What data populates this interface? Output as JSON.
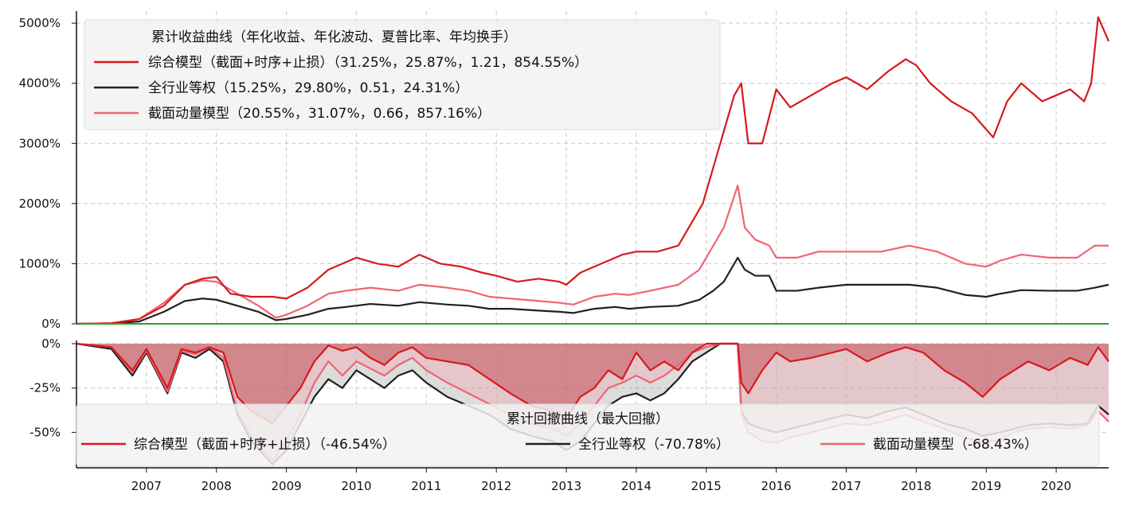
{
  "colors": {
    "composite": "#d7191c",
    "industry": "#231f20",
    "momentum": "#f06474",
    "zero_line": "#2ca02c"
  },
  "chart_data": [
    {
      "type": "line",
      "title": "累计收益曲线（年化收益、年化波动、夏普比率、年均换手）",
      "xlabel": "",
      "ylabel": "",
      "xlim": [
        2006.0,
        2020.75
      ],
      "ylim": [
        0,
        5200
      ],
      "y_unit": "%",
      "y_ticks": [
        "0%",
        "1000%",
        "2000%",
        "3000%",
        "4000%",
        "5000%"
      ],
      "x_ticks": [
        "2007",
        "2008",
        "2009",
        "2010",
        "2011",
        "2012",
        "2013",
        "2014",
        "2015",
        "2016",
        "2017",
        "2018",
        "2019",
        "2020"
      ],
      "grid": true,
      "legend_position": "top-left",
      "series": [
        {
          "name": "综合模型（截面+时序+止损）",
          "stats": "（31.25%，25.87%，1.21，854.55%）",
          "x": [
            2006.0,
            2006.5,
            2006.9,
            2007.25,
            2007.55,
            2007.8,
            2008.0,
            2008.2,
            2008.5,
            2008.8,
            2009.0,
            2009.3,
            2009.6,
            2009.8,
            2010.0,
            2010.3,
            2010.6,
            2010.9,
            2011.2,
            2011.5,
            2011.8,
            2012.0,
            2012.3,
            2012.6,
            2012.9,
            2013.0,
            2013.2,
            2013.5,
            2013.8,
            2014.0,
            2014.3,
            2014.6,
            2014.8,
            2014.95,
            2015.1,
            2015.25,
            2015.4,
            2015.5,
            2015.6,
            2015.8,
            2016.0,
            2016.2,
            2016.5,
            2016.8,
            2017.0,
            2017.3,
            2017.6,
            2017.85,
            2018.0,
            2018.2,
            2018.5,
            2018.8,
            2018.95,
            2019.1,
            2019.3,
            2019.5,
            2019.8,
            2020.0,
            2020.2,
            2020.4,
            2020.5,
            2020.6,
            2020.75
          ],
          "y": [
            0,
            10,
            80,
            300,
            650,
            750,
            780,
            500,
            450,
            450,
            420,
            600,
            900,
            1000,
            1100,
            1000,
            950,
            1150,
            1000,
            950,
            850,
            800,
            700,
            750,
            700,
            650,
            850,
            1000,
            1150,
            1200,
            1200,
            1300,
            1700,
            2000,
            2600,
            3200,
            3800,
            4000,
            3000,
            3000,
            3900,
            3600,
            3800,
            4000,
            4100,
            3900,
            4200,
            4400,
            4300,
            4000,
            3700,
            3500,
            3300,
            3100,
            3700,
            4000,
            3700,
            3800,
            3900,
            3700,
            4000,
            5100,
            4700
          ]
        },
        {
          "name": "全行业等权",
          "stats": "（15.25%，29.80%，0.51，24.31%）",
          "x": [
            2006.0,
            2006.5,
            2006.9,
            2007.25,
            2007.55,
            2007.8,
            2008.0,
            2008.3,
            2008.6,
            2008.85,
            2009.0,
            2009.3,
            2009.6,
            2009.85,
            2010.2,
            2010.6,
            2010.9,
            2011.3,
            2011.6,
            2011.9,
            2012.2,
            2012.6,
            2012.9,
            2013.1,
            2013.4,
            2013.7,
            2013.9,
            2014.2,
            2014.6,
            2014.9,
            2015.1,
            2015.25,
            2015.45,
            2015.55,
            2015.7,
            2015.9,
            2016.0,
            2016.3,
            2016.6,
            2017.0,
            2017.5,
            2017.9,
            2018.3,
            2018.7,
            2019.0,
            2019.2,
            2019.5,
            2019.9,
            2020.3,
            2020.55,
            2020.75
          ],
          "y": [
            0,
            5,
            40,
            200,
            380,
            420,
            400,
            300,
            200,
            60,
            80,
            150,
            250,
            280,
            330,
            300,
            360,
            320,
            300,
            250,
            250,
            220,
            200,
            180,
            250,
            280,
            250,
            280,
            300,
            400,
            550,
            700,
            1100,
            900,
            800,
            800,
            550,
            550,
            600,
            650,
            650,
            650,
            600,
            480,
            450,
            500,
            560,
            550,
            550,
            600,
            650
          ]
        },
        {
          "name": "截面动量模型",
          "stats": "（20.55%，31.07%，0.66，857.16%）",
          "x": [
            2006.0,
            2006.5,
            2006.9,
            2007.25,
            2007.55,
            2007.8,
            2008.0,
            2008.3,
            2008.6,
            2008.85,
            2009.0,
            2009.3,
            2009.6,
            2009.85,
            2010.2,
            2010.6,
            2010.9,
            2011.3,
            2011.6,
            2011.9,
            2012.2,
            2012.6,
            2012.9,
            2013.1,
            2013.4,
            2013.7,
            2013.9,
            2014.2,
            2014.6,
            2014.9,
            2015.1,
            2015.25,
            2015.45,
            2015.55,
            2015.7,
            2015.9,
            2016.0,
            2016.3,
            2016.6,
            2017.0,
            2017.5,
            2017.9,
            2018.3,
            2018.7,
            2019.0,
            2019.2,
            2019.5,
            2019.9,
            2020.3,
            2020.55,
            2020.75
          ],
          "y": [
            0,
            10,
            80,
            350,
            650,
            720,
            700,
            500,
            300,
            100,
            150,
            300,
            500,
            550,
            600,
            550,
            650,
            600,
            550,
            450,
            420,
            380,
            350,
            320,
            450,
            500,
            480,
            550,
            650,
            900,
            1300,
            1600,
            2300,
            1600,
            1400,
            1300,
            1100,
            1100,
            1200,
            1200,
            1200,
            1300,
            1200,
            1000,
            950,
            1050,
            1150,
            1100,
            1100,
            1300,
            1300
          ]
        }
      ]
    },
    {
      "type": "area",
      "title": "累计回撤曲线（最大回撤）",
      "xlabel": "",
      "ylabel": "",
      "xlim": [
        2006.0,
        2020.75
      ],
      "ylim": [
        -70,
        0
      ],
      "y_unit": "%",
      "y_ticks": [
        "0%",
        "-25%",
        "-50%"
      ],
      "x_ticks": [
        "2007",
        "2008",
        "2009",
        "2010",
        "2011",
        "2012",
        "2013",
        "2014",
        "2015",
        "2016",
        "2017",
        "2018",
        "2019",
        "2020"
      ],
      "grid": true,
      "legend_position": "bottom",
      "series": [
        {
          "name": "综合模型（截面+时序+止损）",
          "stats": "（-46.54%）",
          "x": [
            2006.0,
            2006.5,
            2006.8,
            2007.0,
            2007.3,
            2007.5,
            2007.7,
            2007.9,
            2008.1,
            2008.3,
            2008.5,
            2008.8,
            2009.0,
            2009.2,
            2009.4,
            2009.6,
            2009.8,
            2010.0,
            2010.2,
            2010.4,
            2010.6,
            2010.8,
            2011.0,
            2011.3,
            2011.6,
            2011.9,
            2012.2,
            2012.5,
            2012.8,
            2013.0,
            2013.2,
            2013.4,
            2013.6,
            2013.8,
            2014.0,
            2014.2,
            2014.4,
            2014.6,
            2014.8,
            2015.0,
            2015.2,
            2015.45,
            2015.5,
            2015.6,
            2015.8,
            2016.0,
            2016.2,
            2016.5,
            2016.8,
            2017.0,
            2017.3,
            2017.6,
            2017.85,
            2018.1,
            2018.4,
            2018.7,
            2018.95,
            2019.2,
            2019.4,
            2019.6,
            2019.9,
            2020.2,
            2020.45,
            2020.6,
            2020.75
          ],
          "y": [
            0,
            -2,
            -15,
            -3,
            -25,
            -3,
            -5,
            -2,
            -5,
            -30,
            -38,
            -45,
            -35,
            -25,
            -10,
            -1,
            -4,
            -2,
            -8,
            -12,
            -5,
            -2,
            -8,
            -10,
            -12,
            -20,
            -28,
            -35,
            -38,
            -42,
            -30,
            -25,
            -15,
            -20,
            -5,
            -15,
            -10,
            -15,
            -5,
            0,
            0,
            0,
            -22,
            -28,
            -15,
            -5,
            -10,
            -8,
            -5,
            -3,
            -10,
            -5,
            -2,
            -5,
            -15,
            -22,
            -30,
            -20,
            -15,
            -10,
            -15,
            -8,
            -12,
            -2,
            -10
          ]
        },
        {
          "name": "全行业等权",
          "stats": "（-70.78%）",
          "x": [
            2006.0,
            2006.5,
            2006.8,
            2007.0,
            2007.3,
            2007.5,
            2007.7,
            2007.9,
            2008.1,
            2008.3,
            2008.5,
            2008.8,
            2009.0,
            2009.2,
            2009.4,
            2009.6,
            2009.8,
            2010.0,
            2010.2,
            2010.4,
            2010.6,
            2010.8,
            2011.0,
            2011.3,
            2011.6,
            2011.9,
            2012.2,
            2012.5,
            2012.8,
            2013.0,
            2013.2,
            2013.4,
            2013.6,
            2013.8,
            2014.0,
            2014.2,
            2014.4,
            2014.6,
            2014.8,
            2015.0,
            2015.2,
            2015.45,
            2015.5,
            2015.6,
            2015.8,
            2016.0,
            2016.2,
            2016.5,
            2016.8,
            2017.0,
            2017.3,
            2017.6,
            2017.85,
            2018.1,
            2018.4,
            2018.7,
            2018.95,
            2019.2,
            2019.4,
            2019.6,
            2019.9,
            2020.2,
            2020.45,
            2020.6,
            2020.75
          ],
          "y": [
            0,
            -3,
            -18,
            -5,
            -28,
            -5,
            -8,
            -3,
            -10,
            -40,
            -55,
            -68,
            -60,
            -45,
            -30,
            -20,
            -25,
            -15,
            -20,
            -25,
            -18,
            -15,
            -22,
            -30,
            -35,
            -40,
            -48,
            -52,
            -55,
            -60,
            -55,
            -45,
            -35,
            -30,
            -28,
            -32,
            -28,
            -20,
            -10,
            -5,
            0,
            0,
            -38,
            -45,
            -48,
            -50,
            -48,
            -45,
            -42,
            -40,
            -42,
            -38,
            -36,
            -40,
            -45,
            -48,
            -52,
            -50,
            -48,
            -46,
            -45,
            -46,
            -45,
            -35,
            -40
          ]
        },
        {
          "name": "截面动量模型",
          "stats": "（-68.43%）",
          "x": [
            2006.0,
            2006.5,
            2006.8,
            2007.0,
            2007.3,
            2007.5,
            2007.7,
            2007.9,
            2008.1,
            2008.3,
            2008.5,
            2008.8,
            2009.0,
            2009.2,
            2009.4,
            2009.6,
            2009.8,
            2010.0,
            2010.2,
            2010.4,
            2010.6,
            2010.8,
            2011.0,
            2011.3,
            2011.6,
            2011.9,
            2012.2,
            2012.5,
            2012.8,
            2013.0,
            2013.2,
            2013.4,
            2013.6,
            2013.8,
            2014.0,
            2014.2,
            2014.4,
            2014.6,
            2014.8,
            2015.0,
            2015.2,
            2015.45,
            2015.5,
            2015.6,
            2015.8,
            2016.0,
            2016.2,
            2016.5,
            2016.8,
            2017.0,
            2017.3,
            2017.6,
            2017.85,
            2018.1,
            2018.4,
            2018.7,
            2018.95,
            2019.2,
            2019.4,
            2019.6,
            2019.9,
            2020.2,
            2020.45,
            2020.6,
            2020.75
          ],
          "y": [
            0,
            -2,
            -16,
            -4,
            -27,
            -4,
            -6,
            -2,
            -8,
            -38,
            -52,
            -66,
            -55,
            -40,
            -22,
            -10,
            -18,
            -10,
            -14,
            -18,
            -12,
            -8,
            -15,
            -22,
            -28,
            -34,
            -40,
            -45,
            -48,
            -52,
            -45,
            -35,
            -25,
            -22,
            -18,
            -22,
            -18,
            -12,
            -5,
            -2,
            0,
            0,
            -40,
            -50,
            -55,
            -56,
            -53,
            -50,
            -47,
            -45,
            -46,
            -43,
            -40,
            -44,
            -48,
            -53,
            -56,
            -54,
            -50,
            -48,
            -47,
            -48,
            -46,
            -38,
            -44
          ]
        }
      ]
    }
  ]
}
